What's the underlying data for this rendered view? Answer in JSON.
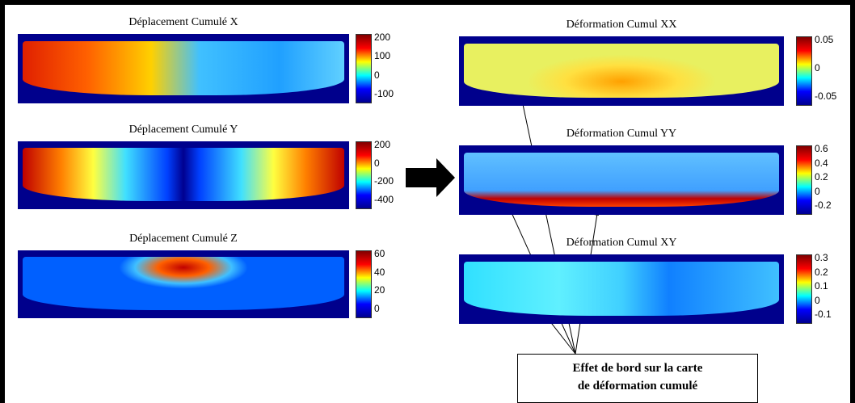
{
  "panels": [
    {
      "title": "Déplacement Cumulé X",
      "colorbar_ticks": [
        200,
        100,
        0,
        -100
      ]
    },
    {
      "title": "Déplacement Cumulé Y",
      "colorbar_ticks": [
        200,
        0,
        -200,
        -400
      ]
    },
    {
      "title": "Déplacement Cumulé Z",
      "colorbar_ticks": [
        60,
        40,
        20,
        0
      ]
    },
    {
      "title": "Déformation Cumul XX",
      "colorbar_ticks": [
        0.05,
        0,
        -0.05
      ]
    },
    {
      "title": "Déformation Cumul YY",
      "colorbar_ticks": [
        0.6,
        0.4,
        0.2,
        0,
        -0.2
      ]
    },
    {
      "title": "Déformation Cumul XY",
      "colorbar_ticks": [
        0.3,
        0.2,
        0.1,
        0,
        -0.1
      ]
    }
  ],
  "annotation": {
    "lines": [
      "Effet de bord sur la carte",
      "de déformation cumulé"
    ]
  }
}
